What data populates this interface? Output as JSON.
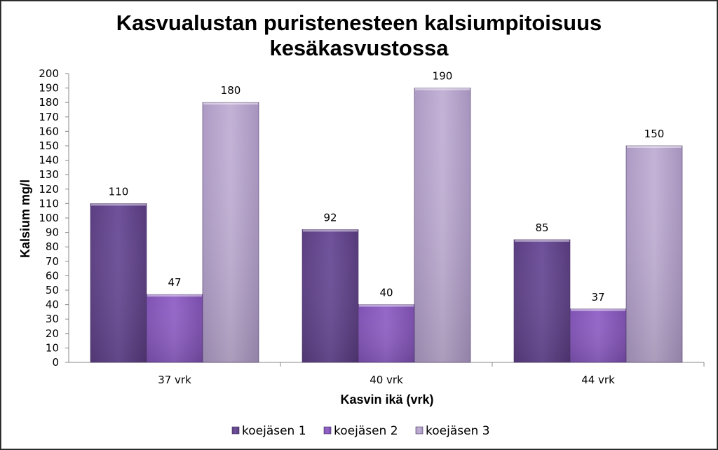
{
  "chart_data": {
    "type": "bar",
    "title_lines": [
      "Kasvualustan puristenesteen kalsiumpitoisuus",
      "kesäkasvustossa"
    ],
    "xlabel": "Kasvin ikä (vrk)",
    "ylabel": "Kalsium mg/l",
    "categories": [
      "37 vrk",
      "40 vrk",
      "44 vrk"
    ],
    "ylim": [
      0,
      200
    ],
    "ytick_step": 10,
    "grid": false,
    "legend_position": "bottom",
    "series": [
      {
        "name": "koejäsen 1",
        "values": [
          110,
          92,
          85
        ],
        "color": "#6a4c93"
      },
      {
        "name": "koejäsen 2",
        "values": [
          47,
          40,
          37
        ],
        "color": "#8a5cc0"
      },
      {
        "name": "koejäsen 3",
        "values": [
          180,
          190,
          150
        ],
        "color": "#b9a6cc"
      }
    ]
  }
}
